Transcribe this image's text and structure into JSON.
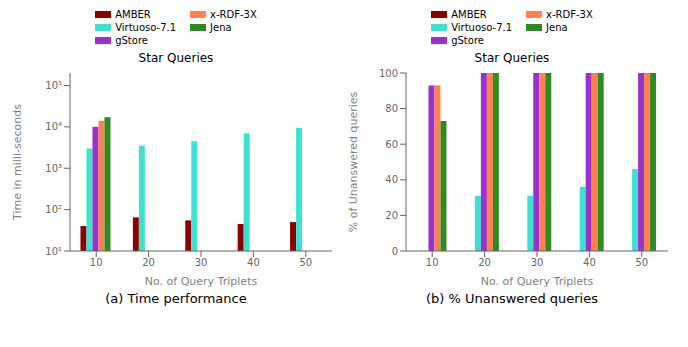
{
  "chart_data": [
    {
      "type": "bar",
      "title": "Star Queries",
      "subtitle": "(a) Time performance",
      "x_label": "No. of Query Triplets",
      "y_label": "Time in milli-seconds",
      "categories": [
        10,
        20,
        30,
        40,
        50
      ],
      "series": [
        {
          "name": "AMBER",
          "color": "#8B0000",
          "values": [
            40,
            65,
            55,
            45,
            50
          ]
        },
        {
          "name": "Virtuoso-7.1",
          "color": "#40E0D0",
          "values": [
            3000,
            3500,
            4500,
            7000,
            9500
          ]
        },
        {
          "name": "gStore",
          "color": "#9932CC",
          "values": [
            10000,
            null,
            null,
            null,
            null
          ]
        },
        {
          "name": "x-RDF-3X",
          "color": "#FF7F50",
          "values": [
            14000,
            null,
            null,
            null,
            null
          ]
        },
        {
          "name": "Jena",
          "color": "#2E8B22",
          "values": [
            17000,
            null,
            null,
            null,
            null
          ]
        }
      ],
      "ylim": [
        10,
        200000
      ],
      "yticks": [
        {
          "value": 10,
          "label": "10¹"
        },
        {
          "value": 100,
          "label": "10²"
        },
        {
          "value": 1000,
          "label": "10³"
        },
        {
          "value": 10000,
          "label": "10⁴"
        },
        {
          "value": 100000,
          "label": "10⁵"
        }
      ],
      "log": "y",
      "grid": false
    },
    {
      "type": "bar",
      "title": "Star Queries",
      "subtitle": "(b) % Unanswered queries",
      "x_label": "No. of Query Triplets",
      "y_label": "% of Unanswered queries",
      "categories": [
        10,
        20,
        30,
        40,
        50
      ],
      "series": [
        {
          "name": "AMBER",
          "color": "#8B0000",
          "values": [
            null,
            null,
            null,
            null,
            null
          ]
        },
        {
          "name": "Virtuoso-7.1",
          "color": "#40E0D0",
          "values": [
            null,
            31,
            31,
            36,
            46
          ]
        },
        {
          "name": "gStore",
          "color": "#9932CC",
          "values": [
            93,
            100,
            100,
            100,
            100
          ]
        },
        {
          "name": "x-RDF-3X",
          "color": "#FF7F50",
          "values": [
            93,
            100,
            100,
            100,
            100
          ]
        },
        {
          "name": "Jena",
          "color": "#2E8B22",
          "values": [
            73,
            100,
            100,
            100,
            100
          ]
        }
      ],
      "ylim": [
        0,
        100
      ],
      "yticks": [
        0,
        20,
        40,
        60,
        80,
        100
      ],
      "grid": false
    }
  ]
}
